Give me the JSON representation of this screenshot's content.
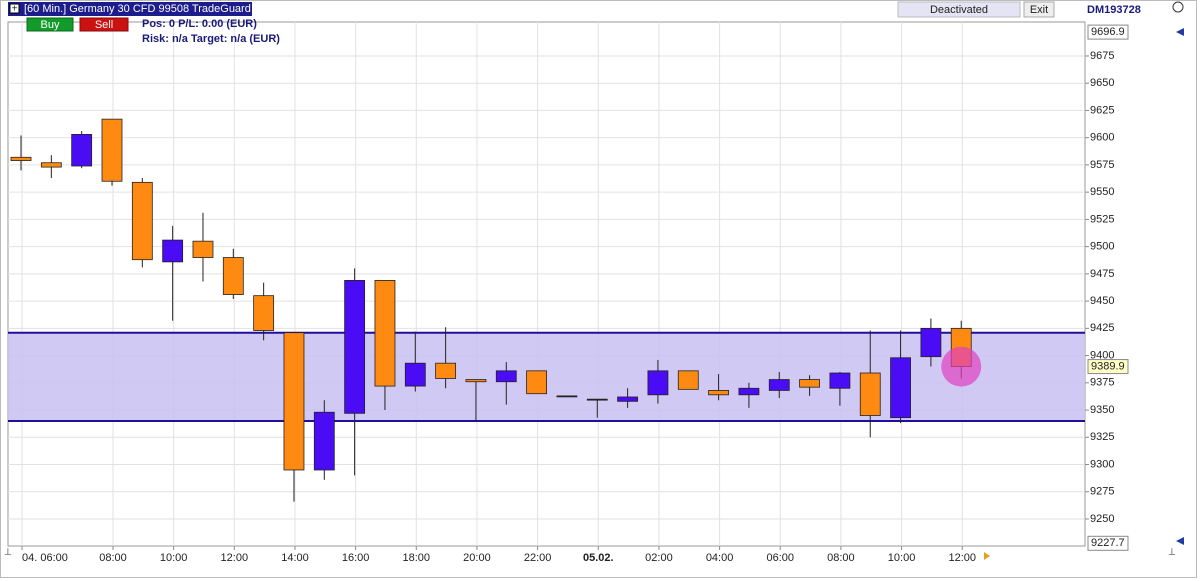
{
  "header": {
    "title": "[60 Min.] Germany 30 CFD  99508 TradeGuard",
    "buy": "Buy",
    "sell": "Sell",
    "position": "Pos: 0  P/L: 0.00  (EUR)",
    "risk": "Risk: n/a  Target: n/a (EUR)",
    "status": "Deactivated",
    "exit": "Exit",
    "account": "DM193728"
  },
  "chart_data": {
    "type": "candlestick",
    "categories": [
      "04. 06:00",
      null,
      null,
      "08:00",
      null,
      "10:00",
      null,
      "12:00",
      null,
      "14:00",
      null,
      "16:00",
      null,
      "18:00",
      null,
      "20:00",
      null,
      "22:00",
      null,
      "05.02.",
      null,
      "02:00",
      null,
      "04:00",
      null,
      "06:00",
      null,
      "08:00",
      null,
      "10:00",
      null,
      "12:00"
    ],
    "open": [
      9582,
      9577,
      9574,
      9617,
      9559,
      9486,
      9505,
      9490,
      9455,
      9421,
      9295,
      9347,
      9469,
      9372,
      9393,
      9378,
      9376,
      9386,
      9363,
      9360,
      9358,
      9364,
      9386,
      9368,
      9364,
      9368,
      9378,
      9370,
      9384,
      9343,
      9399,
      9425
    ],
    "high": [
      9602,
      9584,
      9606,
      9617,
      9563,
      9519,
      9531,
      9498,
      9467,
      9421,
      9359,
      9480,
      9469,
      9422,
      9426,
      9378,
      9394,
      9386,
      9363,
      9360,
      9370,
      9396,
      9386,
      9383,
      9375,
      9385,
      9382,
      9385,
      9423,
      9423,
      9434,
      9432
    ],
    "low": [
      9570,
      9563,
      9572,
      9556,
      9481,
      9432,
      9468,
      9452,
      9414,
      9266,
      9286,
      9290,
      9350,
      9367,
      9370,
      9339,
      9355,
      9365,
      9363,
      9343,
      9352,
      9356,
      9369,
      9359,
      9352,
      9361,
      9363,
      9354,
      9325,
      9338,
      9390,
      9379
    ],
    "close": [
      9579,
      9573,
      9603,
      9560,
      9488,
      9506,
      9490,
      9456,
      9423,
      9295,
      9348,
      9469,
      9372,
      9393,
      9379,
      9376,
      9386,
      9365,
      9363,
      9360,
      9362,
      9386,
      9369,
      9364,
      9370,
      9378,
      9371,
      9384,
      9345,
      9398,
      9425,
      9389.9
    ],
    "up_color": "#4a0cf5",
    "down_color": "#ff8a12",
    "zone": {
      "low": 9340,
      "high": 9421,
      "color": "#c8c0f2",
      "line_color": "#1f0f9c"
    },
    "last_price": 9389.9,
    "ylim": [
      9227.7,
      9696.9
    ],
    "yticks": [
      9250,
      9275,
      9300,
      9325,
      9350,
      9375,
      9400,
      9425,
      9450,
      9475,
      9500,
      9525,
      9550,
      9575,
      9600,
      9625,
      9650,
      9675
    ],
    "grid": true
  }
}
